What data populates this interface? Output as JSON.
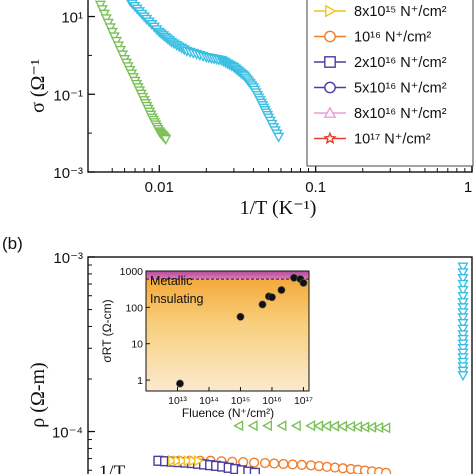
{
  "chart_data": [
    {
      "type": "scatter",
      "panel": "a",
      "title": "",
      "xlabel": "1/T (K⁻¹)",
      "ylabel": "σ (Ω⁻¹",
      "xscale": "log",
      "yscale": "log",
      "xlim": [
        0.0035,
        1.0
      ],
      "ylim": [
        0.001,
        30
      ],
      "xticks": [
        "0.01",
        "0.1",
        "1"
      ],
      "yticks": [
        "10¹",
        "10⁻¹",
        "10⁻³"
      ],
      "legend_position": "top-right",
      "legend": [
        {
          "label": "8x10¹⁵ N⁺/cm²",
          "marker": "triangle-right",
          "color": "#f0c419"
        },
        {
          "label": "10¹⁶ N⁺/cm²",
          "marker": "circle",
          "color": "#ef7d2a"
        },
        {
          "label": "2x10¹⁶ N⁺/cm²",
          "marker": "square",
          "color": "#4b3c9e"
        },
        {
          "label": "5x10¹⁶ N⁺/cm²",
          "marker": "circle",
          "color": "#4b3c9e"
        },
        {
          "label": "8x10¹⁶ N⁺/cm²",
          "marker": "triangle-up",
          "color": "#e79fd6"
        },
        {
          "label": "10¹⁷ N⁺/cm²",
          "marker": "star",
          "color": "#e2402c"
        }
      ],
      "series": [
        {
          "color": "#7cc05a",
          "marker": "triangle-down",
          "x": [
            0.0042,
            0.005,
            0.006,
            0.007,
            0.008,
            0.009,
            0.01,
            0.011
          ],
          "y": [
            20,
            4,
            0.8,
            0.22,
            0.07,
            0.025,
            0.011,
            0.007
          ]
        },
        {
          "color": "#3bbfe3",
          "marker": "triangle-down",
          "x": [
            0.0065,
            0.008,
            0.01,
            0.012,
            0.015,
            0.02,
            0.025,
            0.03,
            0.035,
            0.04,
            0.045,
            0.05,
            0.058
          ],
          "y": [
            25,
            10,
            4,
            2.2,
            1.3,
            0.9,
            0.75,
            0.5,
            0.3,
            0.15,
            0.06,
            0.025,
            0.008
          ]
        }
      ]
    },
    {
      "type": "scatter",
      "panel": "b",
      "panel_label": "(b)",
      "ylabel": "ρ (Ω-m)",
      "xlabel_fragment": "1/T",
      "yscale": "log",
      "yticks": [
        "10⁻³",
        "10⁻⁴"
      ],
      "series": [
        {
          "color": "#3bbfe3",
          "marker": "triangle-down",
          "x": [
            0.001,
            0.0012,
            0.0014,
            0.0016,
            0.0018,
            0.002,
            0.0022,
            0.0024
          ],
          "y": [
            0.00088,
            0.0007,
            0.00055,
            0.00045,
            0.00036,
            0.0003,
            0.00025,
            0.00021
          ]
        },
        {
          "color": "#7cc05a",
          "marker": "triangle-left",
          "x": [
            0.0055,
            0.007,
            0.008,
            0.009
          ],
          "y": [
            0.000108,
            0.000108,
            0.000107,
            0.000105
          ]
        },
        {
          "color": "#ef7d2a",
          "marker": "circle",
          "x": [
            0.0042,
            0.005,
            0.006,
            0.007,
            0.008,
            0.009
          ],
          "y": [
            6.8e-05,
            6.8e-05,
            6.6e-05,
            6.4e-05,
            6.1e-05,
            5.8e-05
          ]
        },
        {
          "color": "#4b3c9e",
          "marker": "square",
          "x": [
            0.0042,
            0.0047,
            0.0052,
            0.0058
          ],
          "y": [
            6.8e-05,
            6.6e-05,
            6.3e-05,
            5.8e-05
          ]
        },
        {
          "color": "#f0c419",
          "marker": "triangle-right",
          "x": [
            0.0044,
            0.0048
          ],
          "y": [
            6.8e-05,
            6.8e-05
          ]
        }
      ],
      "inset": {
        "type": "scatter",
        "xlabel": "Fluence (N⁺/cm²)",
        "ylabel": "σRT (Ω-cm)",
        "xscale": "log",
        "yscale": "log",
        "xlim": [
          1000000000000.0,
          1.5e+17
        ],
        "ylim": [
          0.5,
          1000
        ],
        "xticks": [
          "10¹³",
          "10¹⁴",
          "10¹⁵",
          "10¹⁶",
          "10¹⁷"
        ],
        "yticks": [
          "1000",
          "100",
          "10",
          "1"
        ],
        "threshold_y": 600,
        "region_labels": [
          "Metallic",
          "Insulating"
        ],
        "x": [
          12000000000000.0,
          1000000000000000.0,
          5000000000000000.0,
          8000000000000000.0,
          1e+16,
          2e+16,
          5e+16,
          8e+16,
          1e+17
        ],
        "y": [
          0.8,
          55,
          120,
          200,
          190,
          300,
          650,
          600,
          470
        ]
      }
    }
  ]
}
